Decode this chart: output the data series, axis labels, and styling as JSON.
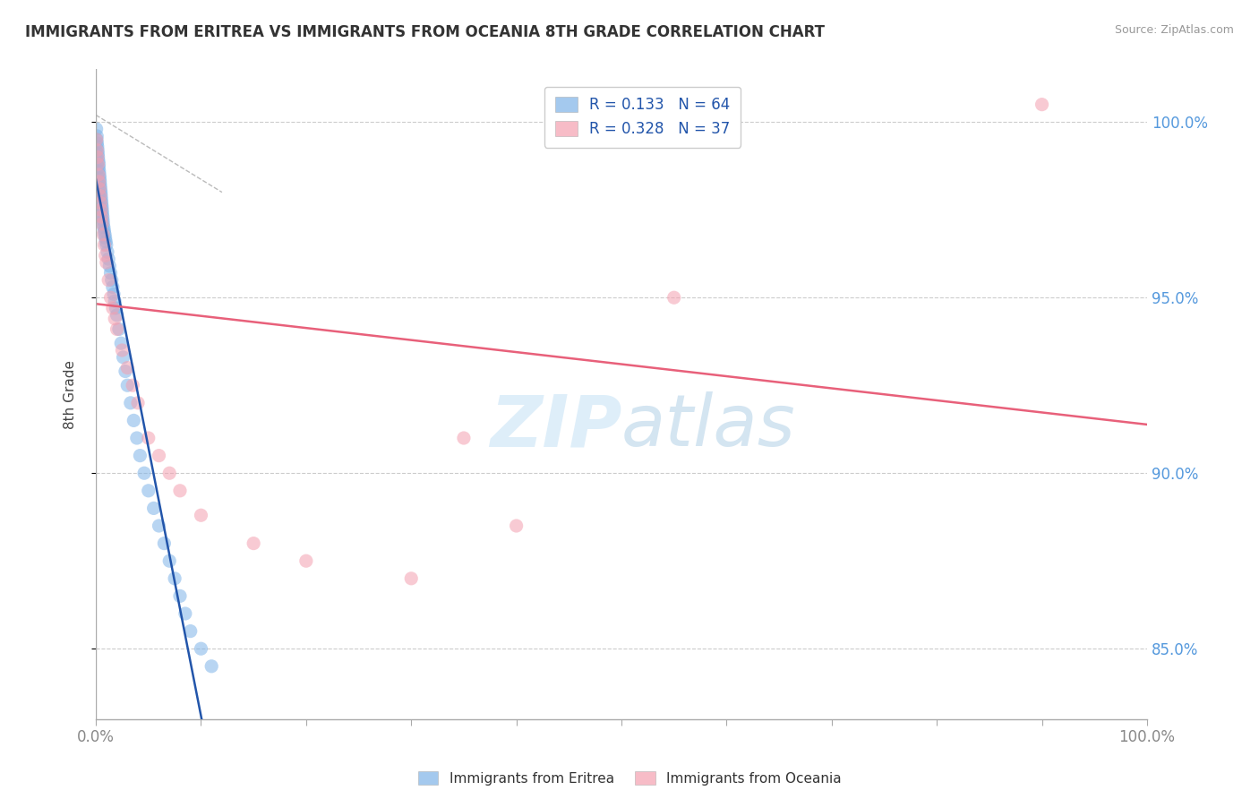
{
  "title": "IMMIGRANTS FROM ERITREA VS IMMIGRANTS FROM OCEANIA 8TH GRADE CORRELATION CHART",
  "source": "Source: ZipAtlas.com",
  "ylabel": "8th Grade",
  "R_blue": 0.133,
  "N_blue": 64,
  "R_pink": 0.328,
  "N_pink": 37,
  "blue_color": "#7EB3E8",
  "pink_color": "#F4A0B0",
  "trend_blue_color": "#2255AA",
  "trend_pink_color": "#E8607A",
  "watermark_color": "#D6EAF8",
  "background_color": "#FFFFFF",
  "grid_color": "#CCCCCC",
  "ytick_color": "#5599DD",
  "xtick_color": "#888888",
  "legend_label_blue": "Immigrants from Eritrea",
  "legend_label_pink": "Immigrants from Oceania",
  "blue_x": [
    0.05,
    0.08,
    0.1,
    0.12,
    0.15,
    0.18,
    0.2,
    0.22,
    0.25,
    0.28,
    0.3,
    0.32,
    0.35,
    0.38,
    0.4,
    0.42,
    0.45,
    0.48,
    0.5,
    0.52,
    0.55,
    0.58,
    0.6,
    0.62,
    0.65,
    0.68,
    0.7,
    0.75,
    0.8,
    0.85,
    0.9,
    0.95,
    1.0,
    1.1,
    1.2,
    1.3,
    1.4,
    1.5,
    1.6,
    1.7,
    1.8,
    1.9,
    2.0,
    2.2,
    2.4,
    2.6,
    2.8,
    3.0,
    3.3,
    3.6,
    3.9,
    4.2,
    4.6,
    5.0,
    5.5,
    6.0,
    6.5,
    7.0,
    7.5,
    8.0,
    8.5,
    9.0,
    10.0,
    11.0
  ],
  "blue_y": [
    99.8,
    99.5,
    99.6,
    99.4,
    99.3,
    99.2,
    99.1,
    99.0,
    98.9,
    98.7,
    98.8,
    98.6,
    98.5,
    98.4,
    98.3,
    98.2,
    98.1,
    98.0,
    97.9,
    97.8,
    97.7,
    97.6,
    97.5,
    97.4,
    97.3,
    97.2,
    97.1,
    97.0,
    96.9,
    96.8,
    96.7,
    96.6,
    96.5,
    96.3,
    96.1,
    95.9,
    95.7,
    95.5,
    95.3,
    95.1,
    94.9,
    94.7,
    94.5,
    94.1,
    93.7,
    93.3,
    92.9,
    92.5,
    92.0,
    91.5,
    91.0,
    90.5,
    90.0,
    89.5,
    89.0,
    88.5,
    88.0,
    87.5,
    87.0,
    86.5,
    86.0,
    85.5,
    85.0,
    84.5
  ],
  "pink_x": [
    0.05,
    0.1,
    0.15,
    0.2,
    0.25,
    0.3,
    0.35,
    0.4,
    0.45,
    0.5,
    0.55,
    0.6,
    0.7,
    0.8,
    0.9,
    1.0,
    1.2,
    1.4,
    1.6,
    1.8,
    2.0,
    2.5,
    3.0,
    3.5,
    4.0,
    5.0,
    6.0,
    7.0,
    8.0,
    10.0,
    15.0,
    20.0,
    30.0,
    35.0,
    40.0,
    55.0,
    90.0
  ],
  "pink_y": [
    99.5,
    99.2,
    99.0,
    98.8,
    98.5,
    98.3,
    98.1,
    97.9,
    97.7,
    97.5,
    97.3,
    97.1,
    96.8,
    96.5,
    96.2,
    96.0,
    95.5,
    95.0,
    94.7,
    94.4,
    94.1,
    93.5,
    93.0,
    92.5,
    92.0,
    91.0,
    90.5,
    90.0,
    89.5,
    88.8,
    88.0,
    87.5,
    87.0,
    91.0,
    88.5,
    95.0,
    100.5
  ],
  "xlim": [
    0.0,
    100.0
  ],
  "ylim": [
    83.0,
    101.5
  ],
  "yticks": [
    85.0,
    90.0,
    95.0,
    100.0
  ]
}
